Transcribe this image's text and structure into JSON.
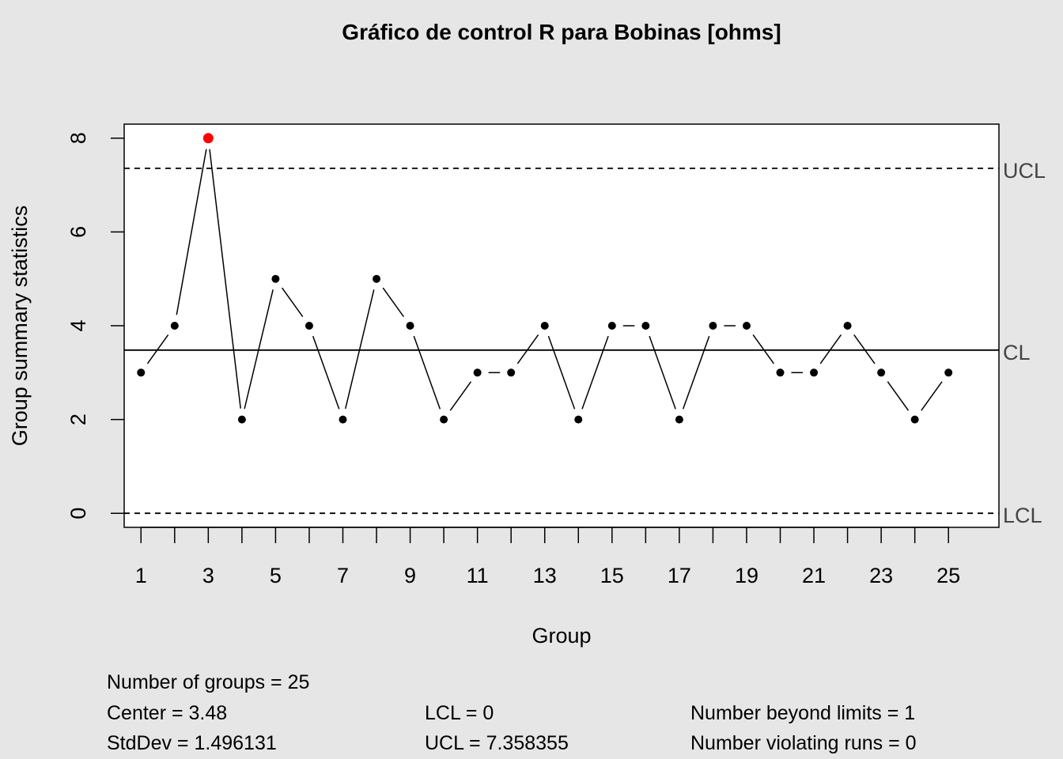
{
  "chart_data": {
    "type": "line",
    "title": "Gráfico de control R para Bobinas [ohms]",
    "xlabel": "Group",
    "ylabel": "Group summary statistics",
    "x": [
      1,
      2,
      3,
      4,
      5,
      6,
      7,
      8,
      9,
      10,
      11,
      12,
      13,
      14,
      15,
      16,
      17,
      18,
      19,
      20,
      21,
      22,
      23,
      24,
      25
    ],
    "values": [
      3,
      4,
      8,
      2,
      5,
      4,
      2,
      5,
      4,
      2,
      3,
      3,
      4,
      2,
      4,
      4,
      2,
      4,
      4,
      3,
      3,
      4,
      3,
      2,
      3
    ],
    "xlim": [
      0.5,
      26.5
    ],
    "ylim": [
      -0.3,
      8.3
    ],
    "x_tick_labels": [
      "1",
      "3",
      "5",
      "7",
      "9",
      "11",
      "13",
      "15",
      "17",
      "19",
      "21",
      "23",
      "25"
    ],
    "y_ticks": [
      0,
      2,
      4,
      6,
      8
    ],
    "y_tick_labels": [
      "0",
      "2",
      "4",
      "6",
      "8"
    ],
    "limits": {
      "ucl": 7.358355,
      "cl": 3.48,
      "lcl": 0,
      "ucl_label": "UCL",
      "cl_label": "CL",
      "lcl_label": "LCL"
    },
    "beyond_limits_color": "#ff0000",
    "point_color": "#000000"
  },
  "stats": {
    "groups": "Number of groups = 25",
    "center": "Center = 3.48",
    "stddev": "StdDev = 1.496131",
    "lcl": "LCL = 0",
    "ucl": "UCL = 7.358355",
    "beyond": "Number beyond limits = 1",
    "runs": "Number violating runs = 0"
  }
}
